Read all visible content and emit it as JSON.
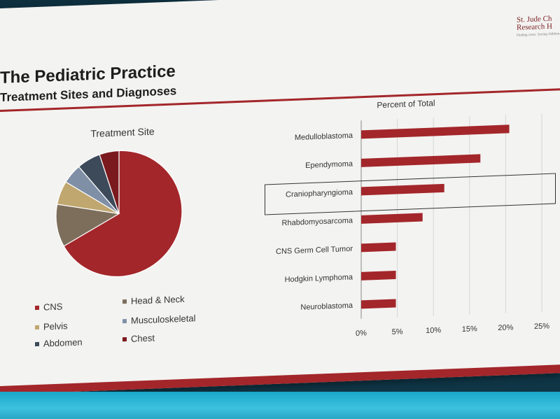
{
  "slide": {
    "title": "The Pediatric Practice",
    "subtitle": "Treatment Sites and Diagnoses",
    "logo_line1": "St. Jude Ch",
    "logo_line2": "Research H",
    "logo_line3": "Finding cures. Saving children."
  },
  "colors": {
    "accent": "#a3262a",
    "slide_bg": "#f3f3f1",
    "floor": "#2bb5d6"
  },
  "chart_data": [
    {
      "type": "pie",
      "title": "Treatment Site",
      "slices": [
        {
          "label": "CNS",
          "value": 67,
          "color": "#a3262a"
        },
        {
          "label": "Head & Neck",
          "value": 11,
          "color": "#7d6e5c"
        },
        {
          "label": "Pelvis",
          "value": 6,
          "color": "#bfa76f"
        },
        {
          "label": "Musculoskeletal",
          "value": 5,
          "color": "#7f8fa6"
        },
        {
          "label": "Abdomen",
          "value": 6,
          "color": "#3d4a5a"
        },
        {
          "label": "Chest",
          "value": 5,
          "color": "#7a1a1e"
        }
      ],
      "legend_position": "bottom"
    },
    {
      "type": "bar",
      "orientation": "horizontal",
      "title": "Percent of Total",
      "categories": [
        "Medulloblastoma",
        "Ependymoma",
        "Craniopharyngioma",
        "Rhabdomyosarcoma",
        "CNS Germ Cell Tumor",
        "Hodgkin Lymphoma",
        "Neuroblastoma"
      ],
      "values": [
        20.5,
        16.5,
        11.5,
        8.5,
        4.8,
        4.8,
        4.8
      ],
      "xlim": [
        0,
        25
      ],
      "xticks": [
        "0%",
        "5%",
        "10%",
        "15%",
        "20%",
        "25%"
      ],
      "grid": true,
      "highlighted": "Craniopharyngioma",
      "bar_color": "#a3262a"
    }
  ]
}
